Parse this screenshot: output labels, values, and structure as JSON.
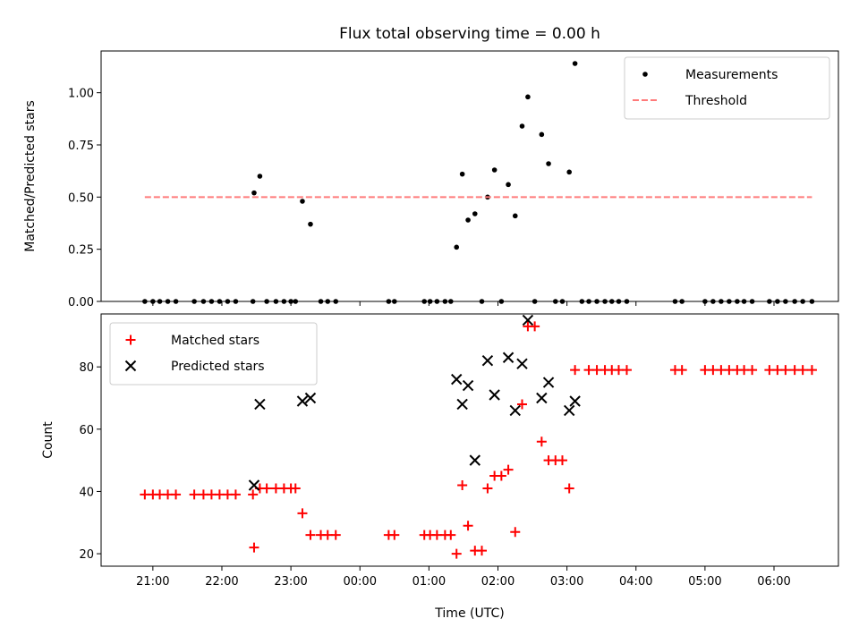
{
  "chart_data": [
    {
      "type": "scatter",
      "title": "Flux total observing time = 0.00 h",
      "xlabel": "",
      "ylabel": "Matched/Predicted stars",
      "xlim": [
        "20:15",
        "06:56"
      ],
      "ylim": [
        0,
        1.2
      ],
      "yticks": [
        "0.00",
        "0.25",
        "0.50",
        "0.75",
        "1.00"
      ],
      "legend_position": "top-right",
      "series": [
        {
          "name": "Measurements",
          "marker": "dot",
          "color": "#000000",
          "points": [
            [
              "20:53",
              0
            ],
            [
              "21:00",
              0
            ],
            [
              "21:06",
              0
            ],
            [
              "21:13",
              0
            ],
            [
              "21:20",
              0
            ],
            [
              "21:36",
              0
            ],
            [
              "21:44",
              0
            ],
            [
              "21:51",
              0
            ],
            [
              "21:58",
              0
            ],
            [
              "22:05",
              0
            ],
            [
              "22:12",
              0
            ],
            [
              "22:27",
              0
            ],
            [
              "22:28",
              0.52
            ],
            [
              "22:33",
              0.6
            ],
            [
              "22:39",
              0
            ],
            [
              "22:47",
              0
            ],
            [
              "22:54",
              0
            ],
            [
              "23:00",
              0
            ],
            [
              "23:04",
              0
            ],
            [
              "23:10",
              0.48
            ],
            [
              "23:17",
              0.37
            ],
            [
              "23:26",
              0
            ],
            [
              "23:32",
              0
            ],
            [
              "23:39",
              0
            ],
            [
              "00:25",
              0
            ],
            [
              "00:30",
              0
            ],
            [
              "00:56",
              0
            ],
            [
              "01:01",
              0
            ],
            [
              "01:07",
              0
            ],
            [
              "01:14",
              0
            ],
            [
              "01:19",
              0
            ],
            [
              "01:24",
              0.26
            ],
            [
              "01:29",
              0.61
            ],
            [
              "01:34",
              0.39
            ],
            [
              "01:40",
              0.42
            ],
            [
              "01:46",
              0
            ],
            [
              "01:51",
              0.5
            ],
            [
              "01:57",
              0.63
            ],
            [
              "02:03",
              0
            ],
            [
              "02:09",
              0.56
            ],
            [
              "02:15",
              0.41
            ],
            [
              "02:21",
              0.84
            ],
            [
              "02:26",
              0.98
            ],
            [
              "02:32",
              0
            ],
            [
              "02:38",
              0.8
            ],
            [
              "02:44",
              0.66
            ],
            [
              "02:50",
              0
            ],
            [
              "02:56",
              0
            ],
            [
              "03:02",
              0.62
            ],
            [
              "03:07",
              1.14
            ],
            [
              "03:13",
              0
            ],
            [
              "03:19",
              0
            ],
            [
              "03:26",
              0
            ],
            [
              "03:33",
              0
            ],
            [
              "03:39",
              0
            ],
            [
              "03:45",
              0
            ],
            [
              "03:52",
              0
            ],
            [
              "04:34",
              0
            ],
            [
              "04:40",
              0
            ],
            [
              "05:00",
              0
            ],
            [
              "05:07",
              0
            ],
            [
              "05:14",
              0
            ],
            [
              "05:21",
              0
            ],
            [
              "05:28",
              0
            ],
            [
              "05:34",
              0
            ],
            [
              "05:41",
              0
            ],
            [
              "05:56",
              0
            ],
            [
              "06:03",
              0
            ],
            [
              "06:10",
              0
            ],
            [
              "06:18",
              0
            ],
            [
              "06:25",
              0
            ],
            [
              "06:33",
              0
            ]
          ]
        },
        {
          "name": "Threshold",
          "marker": "dashed-line",
          "color": "#ff7a7a",
          "points": [
            [
              "20:53",
              0.5
            ],
            [
              "06:33",
              0.5
            ]
          ]
        }
      ]
    },
    {
      "type": "scatter",
      "title": "",
      "xlabel": "Time (UTC)",
      "ylabel": "Count",
      "xlim": [
        "20:15",
        "06:56"
      ],
      "ylim": [
        16,
        97
      ],
      "yticks": [
        "20",
        "40",
        "60",
        "80"
      ],
      "xticks": [
        "21:00",
        "22:00",
        "23:00",
        "00:00",
        "01:00",
        "02:00",
        "03:00",
        "04:00",
        "05:00",
        "06:00"
      ],
      "legend_position": "top-left",
      "series": [
        {
          "name": "Matched stars",
          "marker": "plus",
          "color": "#ff0000",
          "points": [
            [
              "20:53",
              39
            ],
            [
              "21:00",
              39
            ],
            [
              "21:06",
              39
            ],
            [
              "21:13",
              39
            ],
            [
              "21:20",
              39
            ],
            [
              "21:36",
              39
            ],
            [
              "21:44",
              39
            ],
            [
              "21:51",
              39
            ],
            [
              "21:58",
              39
            ],
            [
              "22:05",
              39
            ],
            [
              "22:12",
              39
            ],
            [
              "22:27",
              39
            ],
            [
              "22:28",
              22
            ],
            [
              "22:33",
              41
            ],
            [
              "22:39",
              41
            ],
            [
              "22:47",
              41
            ],
            [
              "22:54",
              41
            ],
            [
              "23:00",
              41
            ],
            [
              "23:04",
              41
            ],
            [
              "23:10",
              33
            ],
            [
              "23:17",
              26
            ],
            [
              "23:26",
              26
            ],
            [
              "23:32",
              26
            ],
            [
              "23:39",
              26
            ],
            [
              "00:25",
              26
            ],
            [
              "00:30",
              26
            ],
            [
              "00:56",
              26
            ],
            [
              "01:01",
              26
            ],
            [
              "01:07",
              26
            ],
            [
              "01:14",
              26
            ],
            [
              "01:19",
              26
            ],
            [
              "01:24",
              20
            ],
            [
              "01:29",
              42
            ],
            [
              "01:34",
              29
            ],
            [
              "01:40",
              21
            ],
            [
              "01:46",
              21
            ],
            [
              "01:51",
              41
            ],
            [
              "01:57",
              45
            ],
            [
              "02:03",
              45
            ],
            [
              "02:09",
              47
            ],
            [
              "02:15",
              27
            ],
            [
              "02:21",
              68
            ],
            [
              "02:26",
              93
            ],
            [
              "02:32",
              93
            ],
            [
              "02:38",
              56
            ],
            [
              "02:44",
              50
            ],
            [
              "02:50",
              50
            ],
            [
              "02:56",
              50
            ],
            [
              "03:02",
              41
            ],
            [
              "03:07",
              79
            ],
            [
              "03:19",
              79
            ],
            [
              "03:26",
              79
            ],
            [
              "03:33",
              79
            ],
            [
              "03:39",
              79
            ],
            [
              "03:45",
              79
            ],
            [
              "03:52",
              79
            ],
            [
              "04:34",
              79
            ],
            [
              "04:40",
              79
            ],
            [
              "05:00",
              79
            ],
            [
              "05:07",
              79
            ],
            [
              "05:14",
              79
            ],
            [
              "05:21",
              79
            ],
            [
              "05:28",
              79
            ],
            [
              "05:34",
              79
            ],
            [
              "05:41",
              79
            ],
            [
              "05:56",
              79
            ],
            [
              "06:03",
              79
            ],
            [
              "06:10",
              79
            ],
            [
              "06:18",
              79
            ],
            [
              "06:25",
              79
            ],
            [
              "06:33",
              79
            ]
          ]
        },
        {
          "name": "Predicted stars",
          "marker": "x",
          "color": "#000000",
          "points": [
            [
              "22:28",
              42
            ],
            [
              "22:33",
              68
            ],
            [
              "23:10",
              69
            ],
            [
              "23:17",
              70
            ],
            [
              "01:24",
              76
            ],
            [
              "01:29",
              68
            ],
            [
              "01:34",
              74
            ],
            [
              "01:40",
              50
            ],
            [
              "01:51",
              82
            ],
            [
              "01:57",
              71
            ],
            [
              "02:09",
              83
            ],
            [
              "02:15",
              66
            ],
            [
              "02:21",
              81
            ],
            [
              "02:26",
              95
            ],
            [
              "02:38",
              70
            ],
            [
              "02:44",
              75
            ],
            [
              "03:02",
              66
            ],
            [
              "03:07",
              69
            ]
          ]
        }
      ]
    }
  ]
}
